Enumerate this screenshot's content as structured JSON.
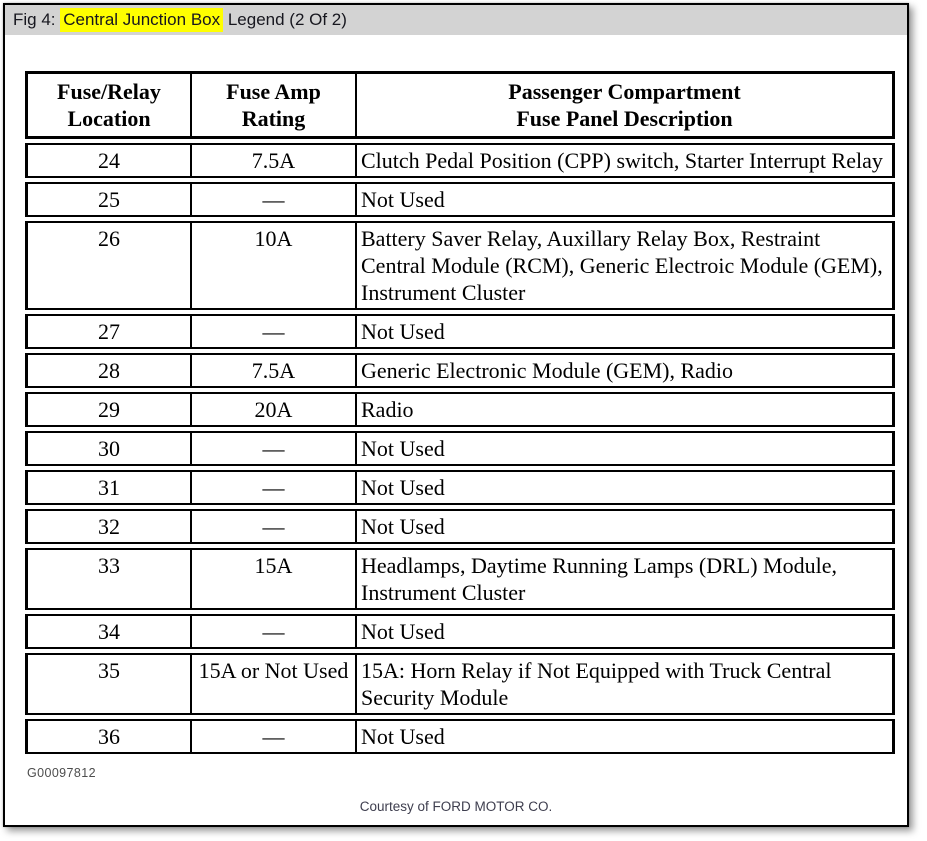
{
  "figure": {
    "title_prefix": "Fig 4: ",
    "title_highlight": "Central Junction Box",
    "title_suffix": " Legend (2 Of 2)"
  },
  "table": {
    "columns": [
      {
        "title_line1": "Fuse/Relay",
        "title_line2": "Location"
      },
      {
        "title_line1": "Fuse Amp",
        "title_line2": "Rating"
      },
      {
        "title_line1": "Passenger Compartment",
        "title_line2": "Fuse Panel Description"
      }
    ],
    "rows": [
      {
        "location": "24",
        "rating": "7.5A",
        "description": "Clutch Pedal Position (CPP) switch, Starter Interrupt Relay"
      },
      {
        "location": "25",
        "rating": "—",
        "description": "Not Used"
      },
      {
        "location": "26",
        "rating": "10A",
        "description": "Battery Saver Relay, Auxillary Relay Box, Restraint Central Module (RCM), Generic Electroic Module (GEM), Instrument Cluster"
      },
      {
        "location": "27",
        "rating": "—",
        "description": "Not Used"
      },
      {
        "location": "28",
        "rating": "7.5A",
        "description": "Generic Electronic Module (GEM), Radio"
      },
      {
        "location": "29",
        "rating": "20A",
        "description": "Radio"
      },
      {
        "location": "30",
        "rating": "—",
        "description": "Not Used"
      },
      {
        "location": "31",
        "rating": "—",
        "description": "Not Used"
      },
      {
        "location": "32",
        "rating": "—",
        "description": "Not Used"
      },
      {
        "location": "33",
        "rating": "15A",
        "description": "Headlamps, Daytime Running Lamps (DRL) Module, Instrument Cluster"
      },
      {
        "location": "34",
        "rating": "—",
        "description": "Not Used"
      },
      {
        "location": "35",
        "rating": "15A or Not Used",
        "description": "15A: Horn Relay if Not Equipped with Truck Central Security Module"
      },
      {
        "location": "36",
        "rating": "—",
        "description": "Not Used"
      }
    ]
  },
  "footnotes": {
    "figure_id": "G00097812",
    "courtesy": "Courtesy of FORD MOTOR CO."
  },
  "colors": {
    "highlight": "#ffff00",
    "titlebar_bg": "#d3d3d3",
    "table_border": "#000000"
  }
}
